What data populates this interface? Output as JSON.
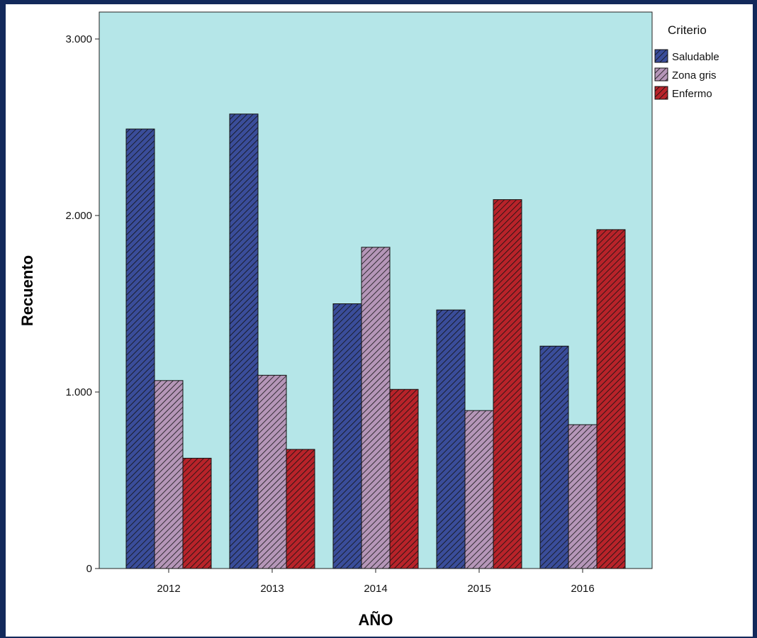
{
  "chart_data": {
    "type": "bar",
    "categories": [
      "2012",
      "2013",
      "2014",
      "2015",
      "2016"
    ],
    "series": [
      {
        "name": "Saludable",
        "values": [
          2490,
          2575,
          1500,
          1465,
          1260
        ],
        "color": "#3a4d9a"
      },
      {
        "name": "Zona gris",
        "values": [
          1065,
          1095,
          1820,
          895,
          815
        ],
        "color": "#b596b8"
      },
      {
        "name": "Enfermo",
        "values": [
          625,
          675,
          1015,
          2090,
          1920
        ],
        "color": "#b8232a"
      }
    ],
    "xlabel": "AÑO",
    "ylabel": "Recuento",
    "ylim": [
      0,
      3000
    ],
    "yticks": [
      0,
      1000,
      2000,
      3000
    ],
    "ytick_labels": [
      "0",
      "1.000",
      "2.000",
      "3.000"
    ],
    "legend": {
      "title": "Criterio",
      "placement": "top-right"
    },
    "grid": false,
    "plot_background": "#b5e6e8",
    "figure_background": "#ffffff",
    "frame_color": "#13295b"
  }
}
